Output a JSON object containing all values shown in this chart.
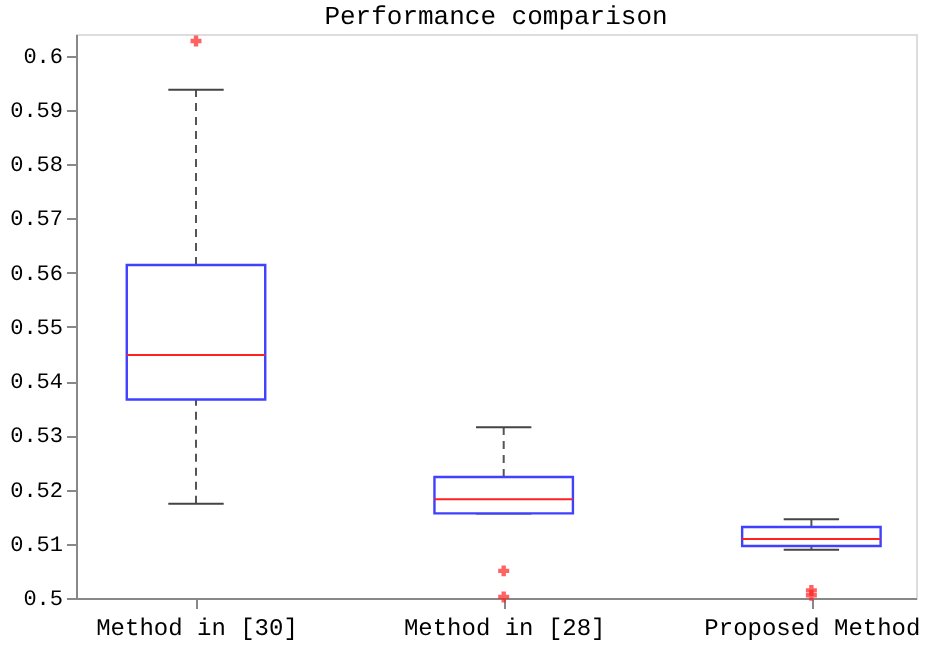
{
  "chart_data": {
    "type": "box",
    "title": "Performance comparison",
    "categories": [
      "Method in [30]",
      "Method in [28]",
      "Proposed Method"
    ],
    "boxes": [
      {
        "low": 0.5174,
        "q1": 0.5366,
        "median": 0.5448,
        "q3": 0.5614,
        "high": 0.5937,
        "outliers": [
          0.6027
        ]
      },
      {
        "low": 0.5156,
        "q1": 0.5156,
        "median": 0.5182,
        "q3": 0.5223,
        "high": 0.5315,
        "outliers": [
          0.505,
          0.5002
        ]
      },
      {
        "low": 0.5089,
        "q1": 0.5096,
        "median": 0.5109,
        "q3": 0.5131,
        "high": 0.5145,
        "outliers": [
          0.5014,
          0.5005
        ]
      }
    ],
    "ylim": [
      0.5,
      0.604
    ],
    "yticks": [
      {
        "value": 0.5,
        "label": "0.5"
      },
      0.51,
      0.52,
      0.53,
      0.54,
      0.55,
      0.56,
      0.57,
      0.58,
      0.59,
      {
        "value": 0.6,
        "label": "0.6"
      }
    ],
    "grid": false
  }
}
